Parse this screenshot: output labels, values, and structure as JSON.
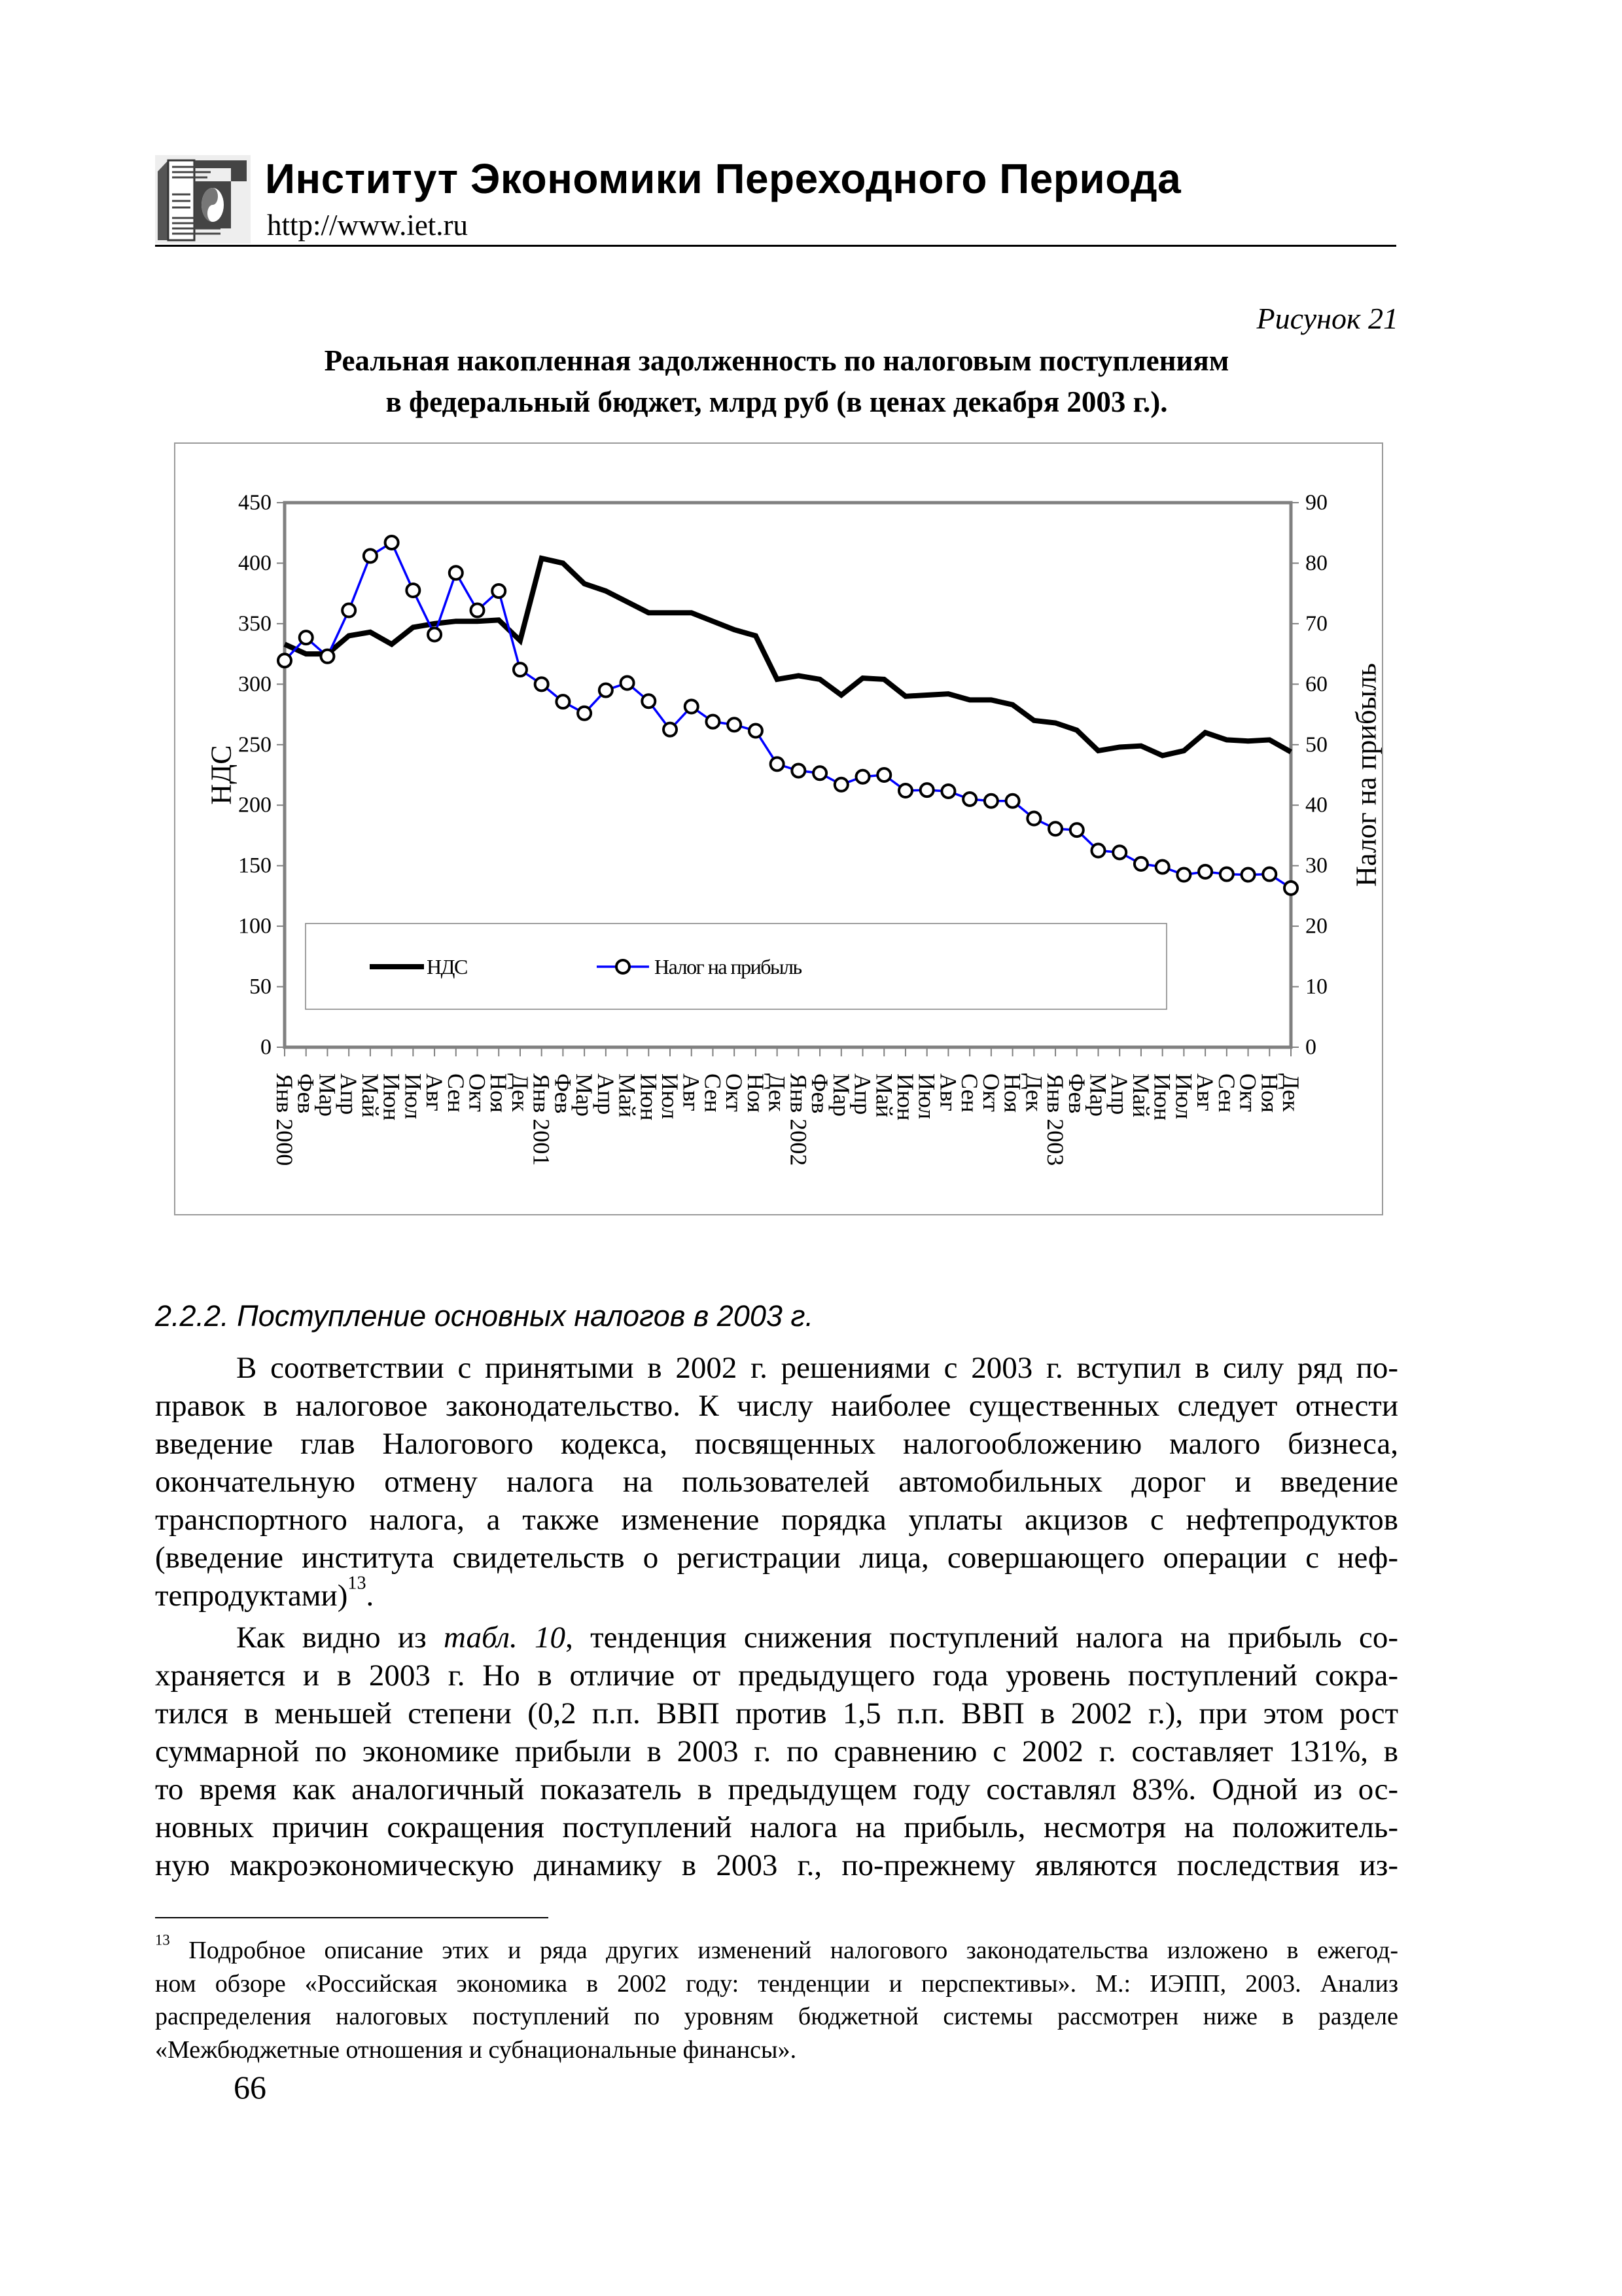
{
  "header": {
    "org_title": "Институт Экономики Переходного Периода",
    "url": "http://www.iet.ru",
    "logo_text": "ИЭПП"
  },
  "figure": {
    "number": "Рисунок 21",
    "title_lines": [
      "Реальная накопленная задолженность по налоговым поступлениям",
      "в федеральный бюджет, млрд руб (в ценах декабря 2003 г.)."
    ]
  },
  "chart_data": {
    "type": "line",
    "title": "Реальная накопленная задолженность по налоговым поступлениям в федеральный бюджет, млрд руб (в ценах декабря 2003 г.).",
    "x": [
      "Янв 2000",
      "Фев",
      "Мар",
      "Апр",
      "Май",
      "Июн",
      "Июл",
      "Авг",
      "Сен",
      "Окт",
      "Ноя",
      "Дек",
      "Янв 2001",
      "Фев",
      "Мар",
      "Апр",
      "Май",
      "Июн",
      "Июл",
      "Авг",
      "Сен",
      "Окт",
      "Ноя",
      "Дек",
      "Янв 2002",
      "Фев",
      "Мар",
      "Апр",
      "Май",
      "Июн",
      "Июл",
      "Авг",
      "Сен",
      "Окт",
      "Ноя",
      "Дек",
      "Янв 2003",
      "Фев",
      "Мар",
      "Апр",
      "Май",
      "Июн",
      "Июл",
      "Авг",
      "Сен",
      "Окт",
      "Ноя",
      "Дек"
    ],
    "ylabel": "НДС",
    "y2label": "Налог на прибыль",
    "ylim": [
      0,
      450
    ],
    "y2lim": [
      0,
      90
    ],
    "yticks": [
      0,
      50,
      100,
      150,
      200,
      250,
      300,
      350,
      400,
      450
    ],
    "y2ticks": [
      0,
      10,
      20,
      30,
      40,
      50,
      60,
      70,
      80,
      90
    ],
    "legend_position": "bottom-left inside",
    "series": [
      {
        "name": "НДС",
        "axis": "left",
        "color": "#000000",
        "values": [
          333,
          325,
          325,
          340,
          343,
          333,
          347,
          350,
          352,
          352,
          353,
          336,
          404,
          400,
          383,
          377,
          368,
          359,
          359,
          359,
          352,
          345,
          340,
          304,
          307,
          304,
          291,
          305,
          304,
          290,
          291,
          292,
          287,
          287,
          283,
          270,
          268,
          262,
          245,
          248,
          249,
          241,
          245,
          260,
          254,
          253,
          254,
          244
        ]
      },
      {
        "name": "Налог на прибыль",
        "axis": "right",
        "color": "#0000ff",
        "values": [
          63.9,
          67.7,
          64.6,
          72.2,
          81.2,
          83.4,
          75.5,
          68.2,
          78.4,
          72.2,
          75.4,
          62.4,
          60.0,
          57.1,
          55.2,
          59.0,
          60.2,
          57.2,
          52.5,
          56.3,
          53.8,
          53.3,
          52.3,
          46.8,
          45.7,
          45.3,
          43.4,
          44.7,
          45.0,
          42.4,
          42.5,
          42.3,
          41.0,
          40.7,
          40.7,
          37.8,
          36.1,
          35.9,
          32.5,
          32.2,
          30.3,
          29.8,
          28.5,
          29.0,
          28.6,
          28.5,
          28.6,
          26.3
        ]
      }
    ]
  },
  "section": {
    "heading": "2.2.2. Поступление основных налогов в 2003 г.",
    "para1": [
      "В соответствии с принятыми в 2002 г. решениями с 2003 г. вступил в силу ряд по-",
      "правок в налоговое законодательство. К числу наиболее существенных следует отнести",
      "введение глав Налогового кодекса, посвященных налогообложению малого бизнеса,",
      "окончательную отмену налога на пользователей автомобильных дорог и введение",
      "транспортного налога, а также изменение порядка уплаты акцизов с нефтепродуктов",
      "(введение института свидетельств о регистрации лица, совершающего операции с неф-"
    ],
    "para1_last": {
      "text": "тепродуктами)",
      "sup": "13",
      "tail": "."
    },
    "para2_first": {
      "pre": "Как видно из ",
      "italic": "табл. 10",
      "post": ", тенденция снижения поступлений налога на прибыль со-"
    },
    "para2": [
      "храняется и в 2003 г. Но в отличие от предыдущего года уровень поступлений сокра-",
      "тился в меньшей степени (0,2 п.п. ВВП против 1,5 п.п. ВВП в 2002 г.), при этом рост",
      "суммарной по экономике прибыли в 2003 г. по сравнению с 2002 г. составляет 131%, в",
      "то время как аналогичный показатель в предыдущем году составлял 83%. Одной из ос-",
      "новных причин сокращения поступлений налога на прибыль, несмотря на положитель-",
      "ную макроэкономическую динамику в 2003 г., по-прежнему являются последствия из-"
    ]
  },
  "footnote": {
    "mark": "13",
    "first": " Подробное описание этих и ряда других изменений налогового законодательства изложено в ежегод-",
    "lines": [
      "ном обзоре «Российская экономика в 2002 году: тенденции и перспективы». М.: ИЭПП, 2003. Анализ",
      "распределения налоговых поступлений по уровням бюджетной системы рассмотрен ниже в разделе"
    ],
    "last": "«Межбюджетные отношения и субнациональные финансы»."
  },
  "page_number": "66"
}
